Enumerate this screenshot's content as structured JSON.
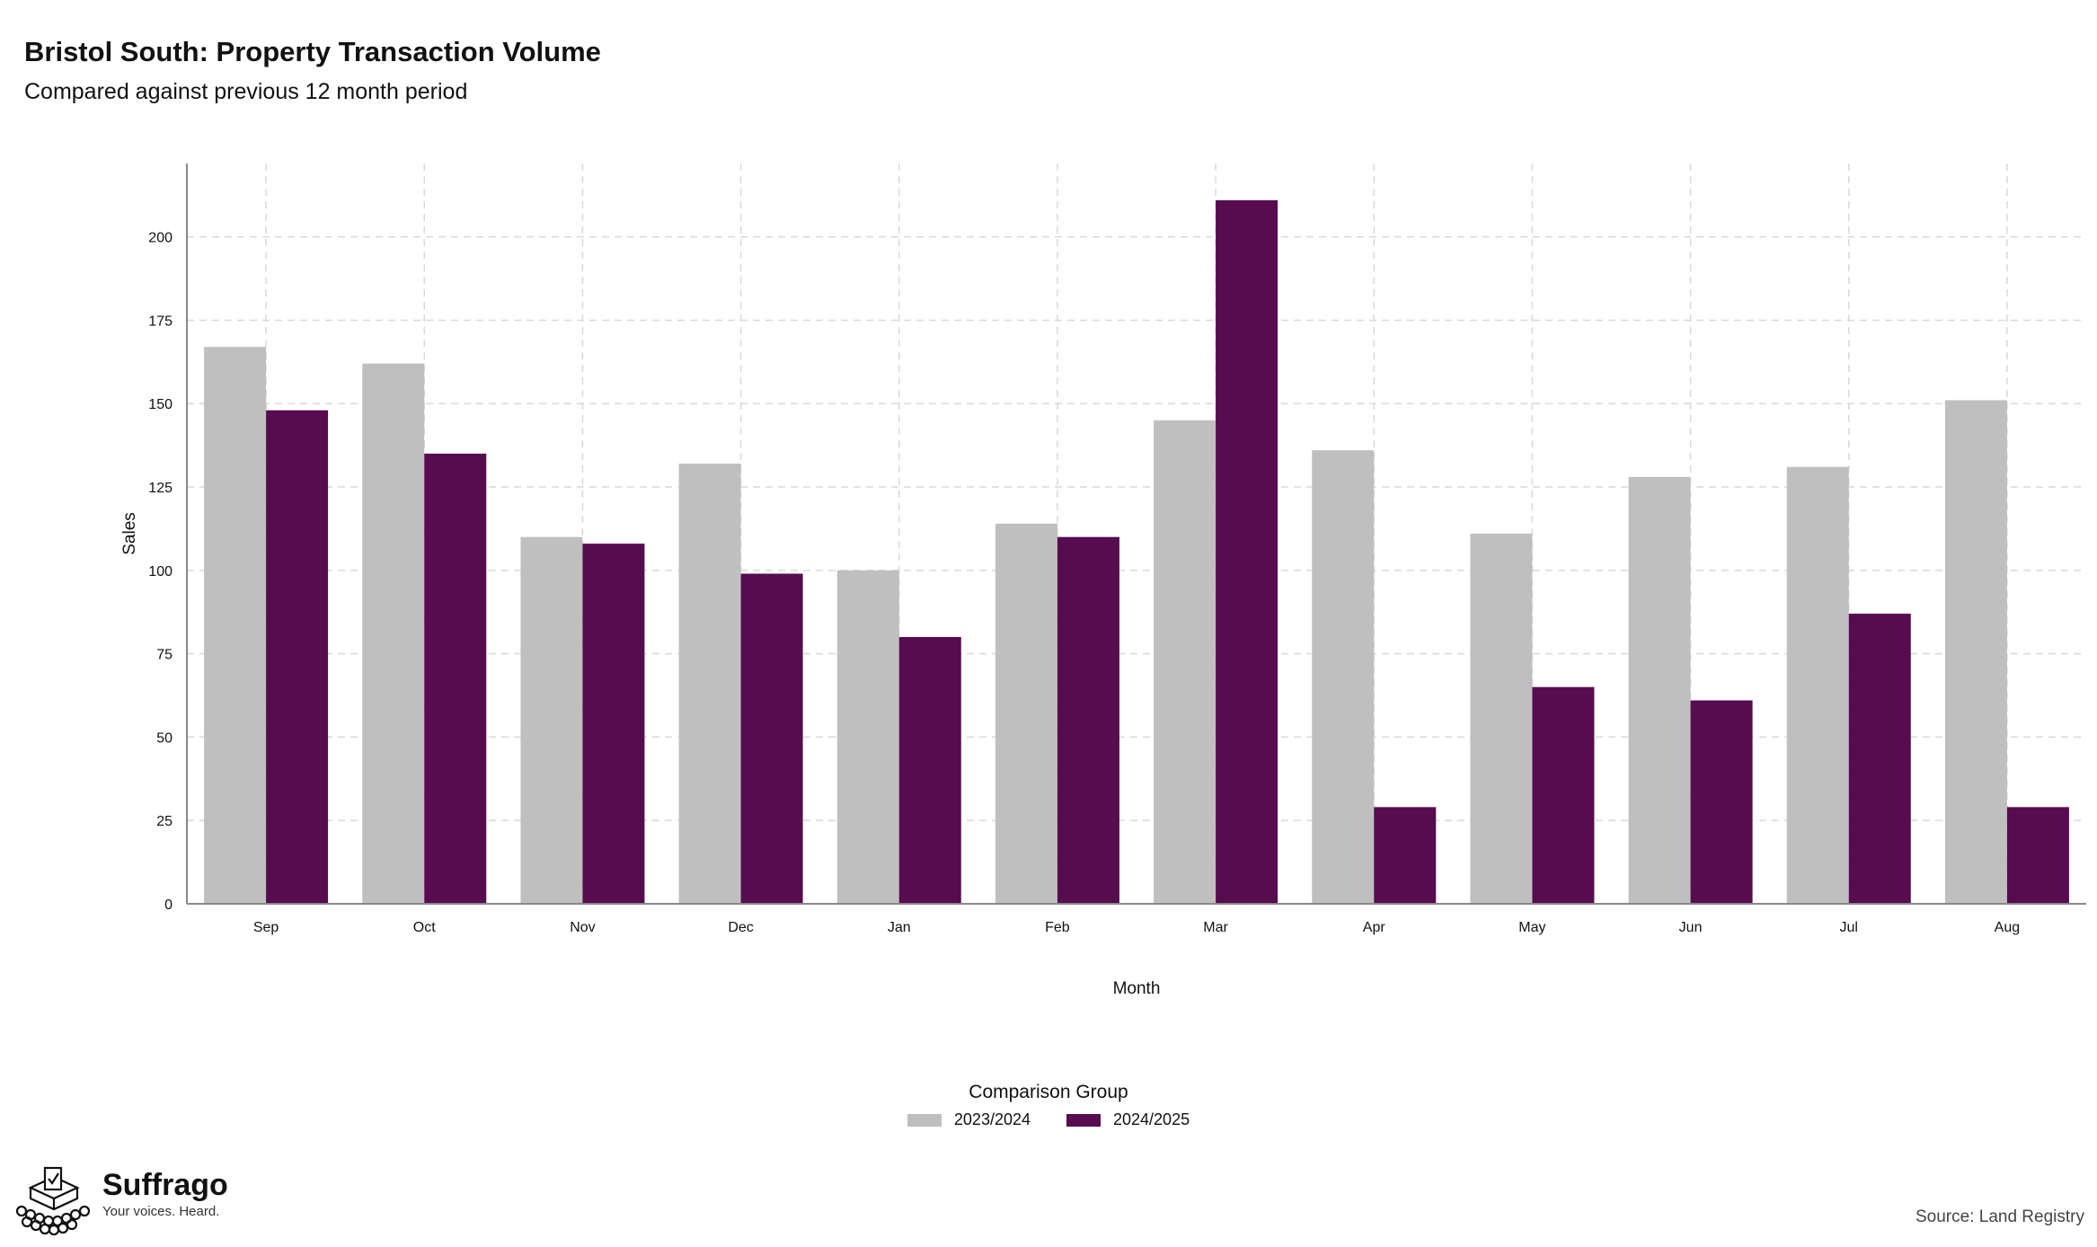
{
  "header": {
    "title": "Bristol South: Property Transaction Volume",
    "subtitle": "Compared against previous 12 month period"
  },
  "colors": {
    "series_2023_2024": "#bfbfbf",
    "series_2024_2025": "#560c4f",
    "grid": "#d9d9d9",
    "axis": "#888888"
  },
  "chart_data": {
    "type": "bar",
    "xlabel": "Month",
    "ylabel": "Sales",
    "ylim": [
      0,
      222
    ],
    "yticks": [
      0,
      25,
      50,
      75,
      100,
      125,
      150,
      175,
      200
    ],
    "grid": true,
    "categories": [
      "Sep",
      "Oct",
      "Nov",
      "Dec",
      "Jan",
      "Feb",
      "Mar",
      "Apr",
      "May",
      "Jun",
      "Jul",
      "Aug"
    ],
    "series": [
      {
        "name": "2023/2024",
        "values": [
          167,
          162,
          110,
          132,
          100,
          114,
          145,
          136,
          111,
          128,
          131,
          151
        ]
      },
      {
        "name": "2024/2025",
        "values": [
          148,
          135,
          108,
          99,
          80,
          110,
          211,
          29,
          65,
          61,
          87,
          29
        ]
      }
    ],
    "legend": {
      "title": "Comparison Group",
      "placement": "bottom"
    }
  },
  "branding": {
    "name": "Suffrago",
    "tagline": "Your voices. Heard.",
    "logo_icon": "ballot-box-icon"
  },
  "source": "Source: Land Registry"
}
